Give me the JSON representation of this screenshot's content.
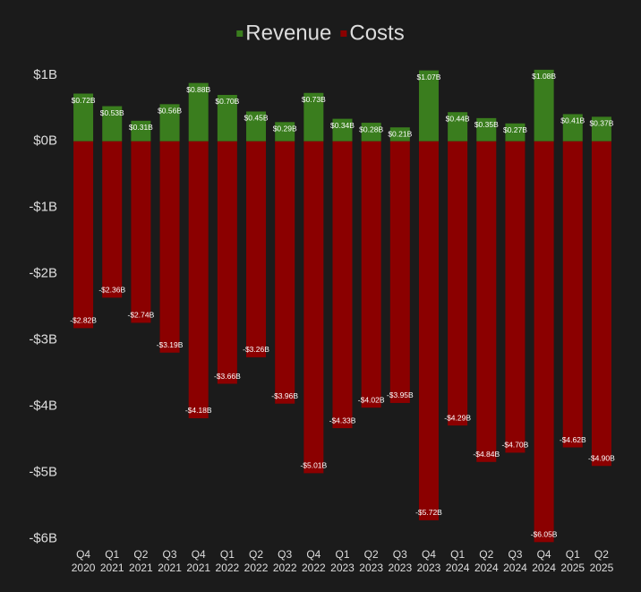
{
  "chart_data": {
    "type": "bar",
    "categories": [
      [
        "Q4",
        "2020"
      ],
      [
        "Q1",
        "2021"
      ],
      [
        "Q2",
        "2021"
      ],
      [
        "Q3",
        "2021"
      ],
      [
        "Q4",
        "2021"
      ],
      [
        "Q1",
        "2022"
      ],
      [
        "Q2",
        "2022"
      ],
      [
        "Q3",
        "2022"
      ],
      [
        "Q4",
        "2022"
      ],
      [
        "Q1",
        "2023"
      ],
      [
        "Q2",
        "2023"
      ],
      [
        "Q3",
        "2023"
      ],
      [
        "Q4",
        "2023"
      ],
      [
        "Q1",
        "2024"
      ],
      [
        "Q2",
        "2024"
      ],
      [
        "Q3",
        "2024"
      ],
      [
        "Q4",
        "2024"
      ],
      [
        "Q1",
        "2025"
      ],
      [
        "Q2",
        "2025"
      ]
    ],
    "series": [
      {
        "name": "Revenue",
        "color": "#3a7d1e",
        "values": [
          0.72,
          0.53,
          0.31,
          0.56,
          0.88,
          0.7,
          0.45,
          0.29,
          0.73,
          0.34,
          0.28,
          0.21,
          1.07,
          0.44,
          0.35,
          0.27,
          1.08,
          0.41,
          0.37
        ],
        "value_labels": [
          "$0.72B",
          "$0.53B",
          "$0.31B",
          "$0.56B",
          "$0.88B",
          "$0.70B",
          "$0.45B",
          "$0.29B",
          "$0.73B",
          "$0.34B",
          "$0.28B",
          "$0.21B",
          "$1.07B",
          "$0.44B",
          "$0.35B",
          "$0.27B",
          "$1.08B",
          "$0.41B",
          "$0.37B"
        ]
      },
      {
        "name": "Costs",
        "color": "#8b0000",
        "values": [
          -2.82,
          -2.36,
          -2.74,
          -3.19,
          -4.18,
          -3.66,
          -3.26,
          -3.96,
          -5.01,
          -4.33,
          -4.02,
          -3.95,
          -5.72,
          -4.29,
          -4.84,
          -4.7,
          -6.05,
          -4.62,
          -4.9
        ],
        "value_labels": [
          "-$2.82B",
          "-$2.36B",
          "-$2.74B",
          "-$3.19B",
          "-$4.18B",
          "-$3.66B",
          "-$3.26B",
          "-$3.96B",
          "-$5.01B",
          "-$4.33B",
          "-$4.02B",
          "-$3.95B",
          "-$5.72B",
          "-$4.29B",
          "-$4.84B",
          "-$4.70B",
          "-$6.05B",
          "-$4.62B",
          "-$4.90B"
        ]
      }
    ],
    "ylim": [
      -6.1,
      1.2
    ],
    "yticks": [
      {
        "value": 1,
        "label": "$1B"
      },
      {
        "value": 0,
        "label": "$0B"
      },
      {
        "value": -1,
        "label": "-$1B"
      },
      {
        "value": -2,
        "label": "-$2B"
      },
      {
        "value": -3,
        "label": "-$3B"
      },
      {
        "value": -4,
        "label": "-$4B"
      },
      {
        "value": -5,
        "label": "-$5B"
      },
      {
        "value": -6,
        "label": "-$6B"
      }
    ],
    "legend": "top",
    "grid": false
  }
}
